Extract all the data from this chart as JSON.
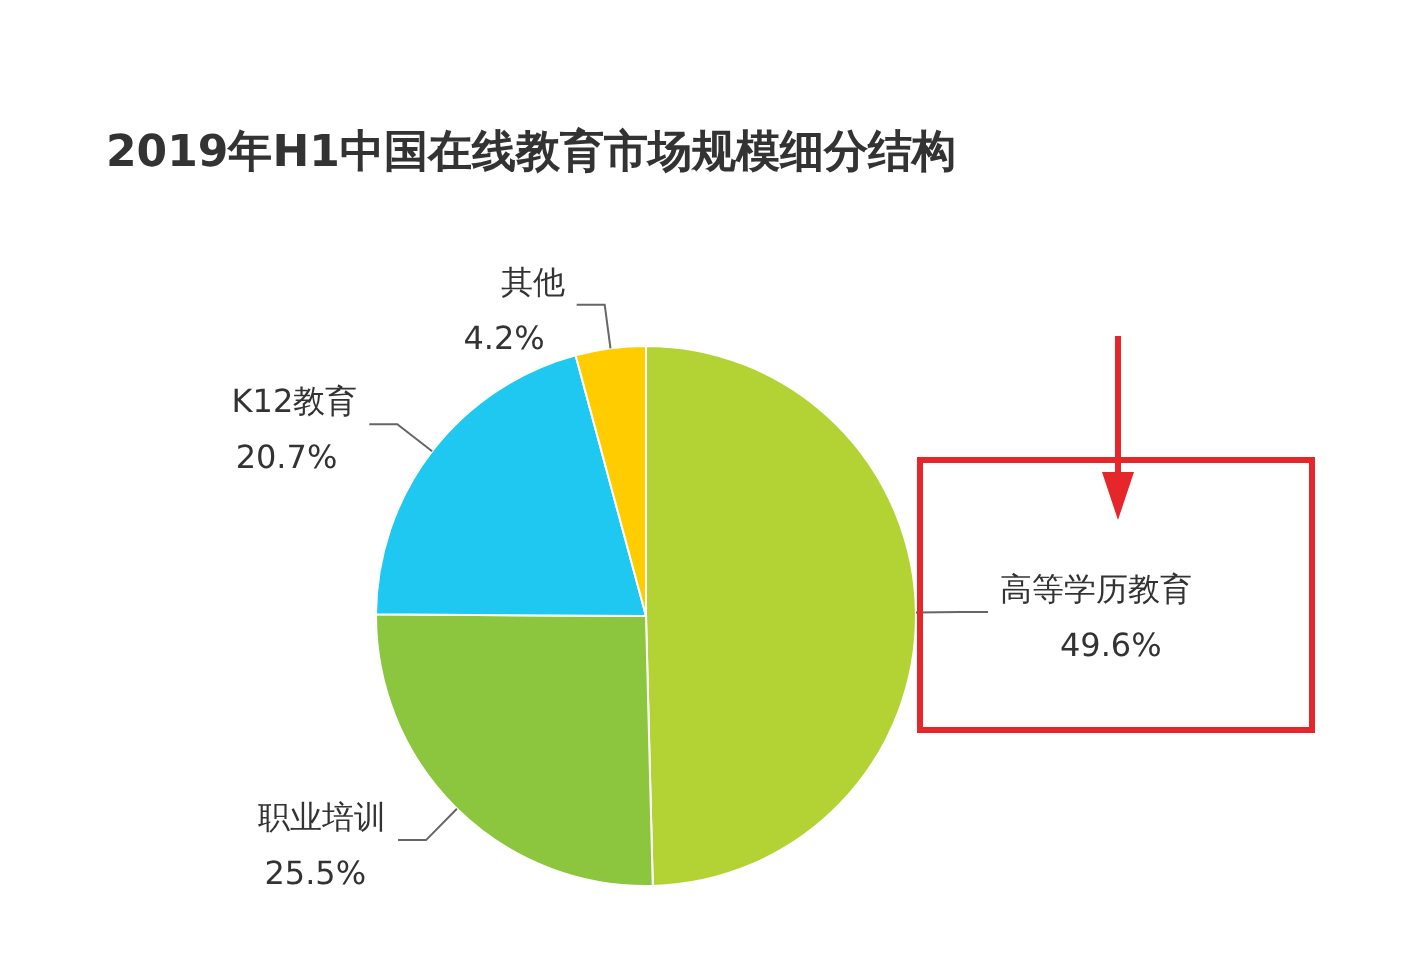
{
  "chart_data": {
    "type": "pie",
    "title": "2019年H1中国在线教育市场规模细分结构",
    "categories": [
      "高等学历教育",
      "职业培训",
      "K12教育",
      "其他"
    ],
    "values": [
      49.6,
      25.5,
      20.7,
      4.2
    ],
    "colors": [
      "#b3d334",
      "#8cc63f",
      "#1ec8f0",
      "#ffcc00"
    ],
    "value_labels": [
      "49.6%",
      "25.5%",
      "20.7%",
      "4.2%"
    ]
  }
}
